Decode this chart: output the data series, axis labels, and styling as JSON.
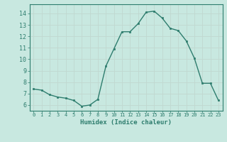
{
  "x": [
    0,
    1,
    2,
    3,
    4,
    5,
    6,
    7,
    8,
    9,
    10,
    11,
    12,
    13,
    14,
    15,
    16,
    17,
    18,
    19,
    20,
    21,
    22,
    23
  ],
  "y": [
    7.4,
    7.3,
    6.9,
    6.7,
    6.6,
    6.4,
    5.9,
    6.0,
    6.5,
    9.4,
    10.9,
    12.4,
    12.4,
    13.1,
    14.1,
    14.2,
    13.6,
    12.7,
    12.5,
    11.6,
    10.1,
    7.9,
    7.9,
    6.4
  ],
  "line_color": "#2e7d6e",
  "marker_color": "#2e7d6e",
  "bg_color": "#c8e8e0",
  "grid_color": "#c0d8d0",
  "xlabel": "Humidex (Indice chaleur)",
  "ylim": [
    5.5,
    14.8
  ],
  "xlim": [
    -0.5,
    23.5
  ],
  "xticks": [
    0,
    1,
    2,
    3,
    4,
    5,
    6,
    7,
    8,
    9,
    10,
    11,
    12,
    13,
    14,
    15,
    16,
    17,
    18,
    19,
    20,
    21,
    22,
    23
  ],
  "yticks": [
    6,
    7,
    8,
    9,
    10,
    11,
    12,
    13,
    14
  ],
  "tick_color": "#2e7d6e",
  "label_color": "#2e7d6e",
  "axis_color": "#2e7d6e",
  "xlabel_fontsize": 6.5,
  "xtick_fontsize": 5.0,
  "ytick_fontsize": 6.0
}
